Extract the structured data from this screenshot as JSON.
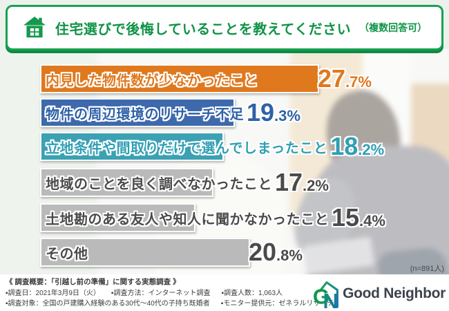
{
  "header": {
    "title": "住宅選びで後悔していることを教えてください",
    "note": "（複数回答可）"
  },
  "chart_data": {
    "type": "bar",
    "orientation": "horizontal",
    "title": "住宅選びで後悔していることを教えてください（複数回答可）",
    "unit": "%",
    "grid": false,
    "legend": false,
    "axis_hidden": true,
    "xlim": [
      0,
      30
    ],
    "sample_size_note": "(n=891人)",
    "categories": [
      "内見した物件数が少なかったこと",
      "物件の周辺環境のリサーチ不足",
      "立地条件や間取りだけで選んでしまったこと",
      "地域のことを良く調べなかったこと",
      "土地勘のある友人や知人に聞かなかったこと",
      "その他"
    ],
    "values": [
      27.7,
      19.3,
      18.2,
      17.2,
      15.4,
      20.8
    ],
    "bar_colors": [
      "#e0781e",
      "#3e69ac",
      "#3ba1b3",
      "#bababa",
      "#bababa",
      "#bababa"
    ],
    "text_colors": [
      "#e0781e",
      "#2e61a8",
      "#2f9fb4",
      "#4a4a4a",
      "#4a4a4a",
      "#4a4a4a"
    ]
  },
  "footer": {
    "heading": "《 調査概要：「引越し前の準備」に関する実態調査 》",
    "detail_rows": [
      [
        "▪調査日：2021年3月9日（火）",
        "▪調査方法：インターネット調査",
        "▪調査人数：1,063人"
      ],
      [
        "▪調査対象：全国の戸建購入経験のある30代～40代の子持ち既婚者",
        "▪モニター提供元：ゼネラルリサーチ"
      ]
    ],
    "brand_name": "Good Neighbor"
  },
  "colors": {
    "header_green": "#0f9347",
    "header_border": "#18a052",
    "header_shadow": "#0c8c43",
    "logo_green": "#11984d",
    "logo_blue": "#1d6fb3"
  }
}
